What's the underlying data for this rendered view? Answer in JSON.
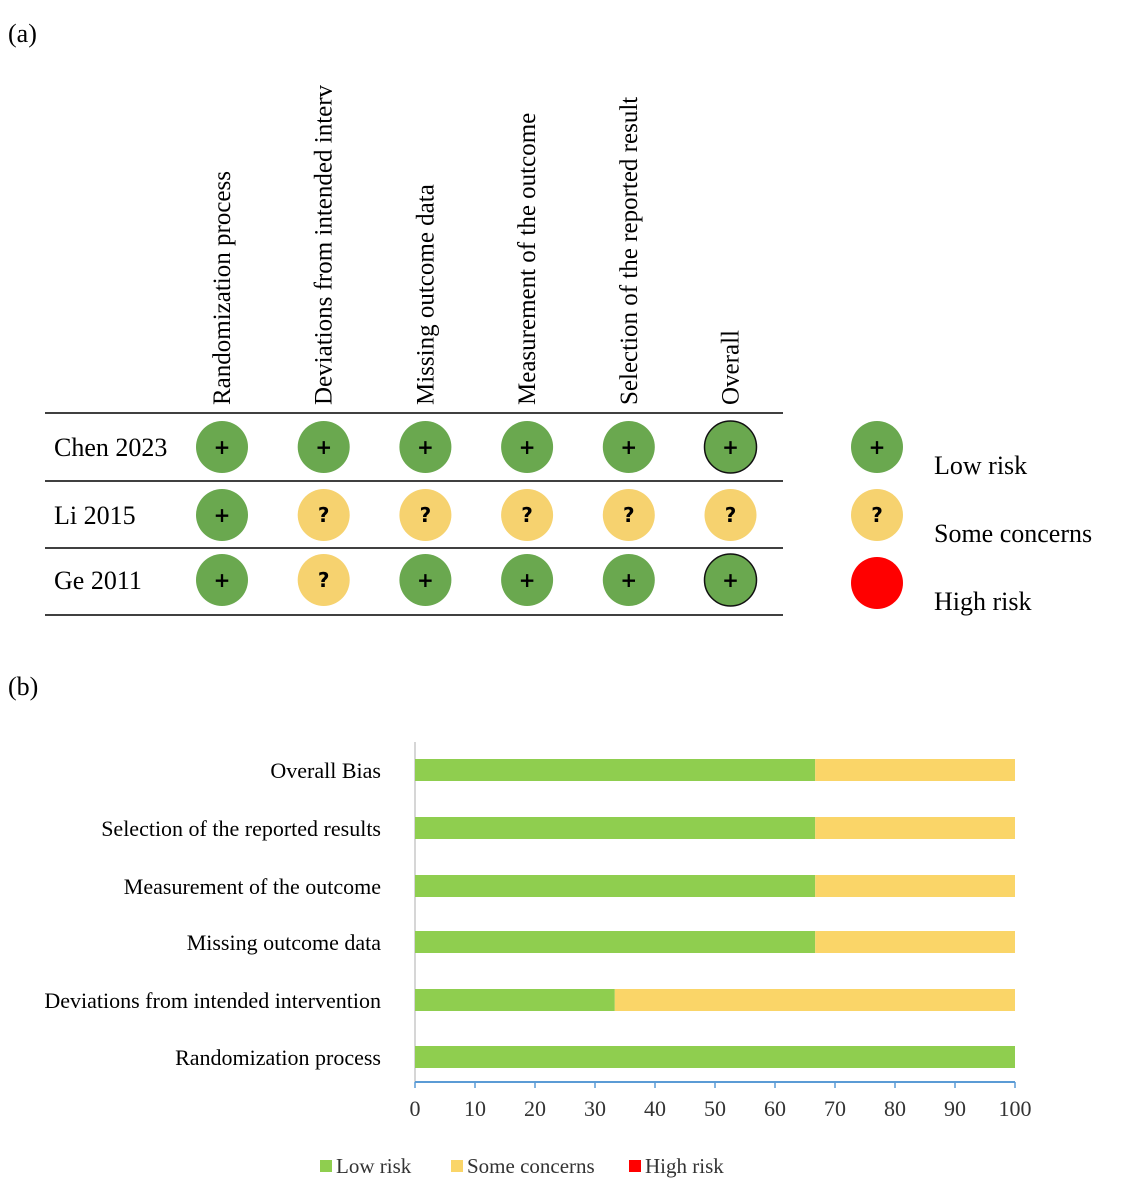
{
  "panel_a": {
    "label": "(a)",
    "columns": [
      "Randomization process",
      "Deviations from intended interv",
      "Missing outcome data",
      "Measurement of the outcome",
      "Selection of the reported result",
      "Overall"
    ],
    "rows": [
      {
        "study": "Chen 2023",
        "ratings": [
          "low",
          "low",
          "low",
          "low",
          "low",
          "low"
        ]
      },
      {
        "study": "Li 2015",
        "ratings": [
          "low",
          "some",
          "some",
          "some",
          "some",
          "some"
        ]
      },
      {
        "study": "Ge 2011",
        "ratings": [
          "low",
          "some",
          "low",
          "low",
          "low",
          "low"
        ]
      }
    ],
    "legend": [
      {
        "key": "low",
        "label": "Low risk",
        "symbol": "+"
      },
      {
        "key": "some",
        "label": "Some concerns",
        "symbol": "?"
      },
      {
        "key": "high",
        "label": "High risk",
        "symbol": ""
      }
    ],
    "colors": {
      "low": "#6aa84f",
      "some": "#f6d26f",
      "high": "#ff0000"
    }
  },
  "panel_b": {
    "label": "(b)"
  },
  "chart_data": {
    "type": "bar",
    "orientation": "horizontal",
    "stacked": true,
    "categories": [
      "Overall Bias",
      "Selection of the reported results",
      "Measurement of the outcome",
      "Missing outcome data",
      "Deviations from intended intervention",
      "Randomization process"
    ],
    "series": [
      {
        "name": "Low risk",
        "color": "#8fce4f",
        "values": [
          66.7,
          66.7,
          66.7,
          66.7,
          33.3,
          100
        ]
      },
      {
        "name": "Some concerns",
        "color": "#fad568",
        "values": [
          33.3,
          33.3,
          33.3,
          33.3,
          66.7,
          0
        ]
      },
      {
        "name": "High risk",
        "color": "#ff0000",
        "values": [
          0,
          0,
          0,
          0,
          0,
          0
        ]
      }
    ],
    "xlim": [
      0,
      100
    ],
    "xticks": [
      "0",
      "10",
      "20",
      "30",
      "40",
      "50",
      "60",
      "70",
      "80",
      "90",
      "100"
    ],
    "legend_position": "bottom",
    "grid": false
  }
}
